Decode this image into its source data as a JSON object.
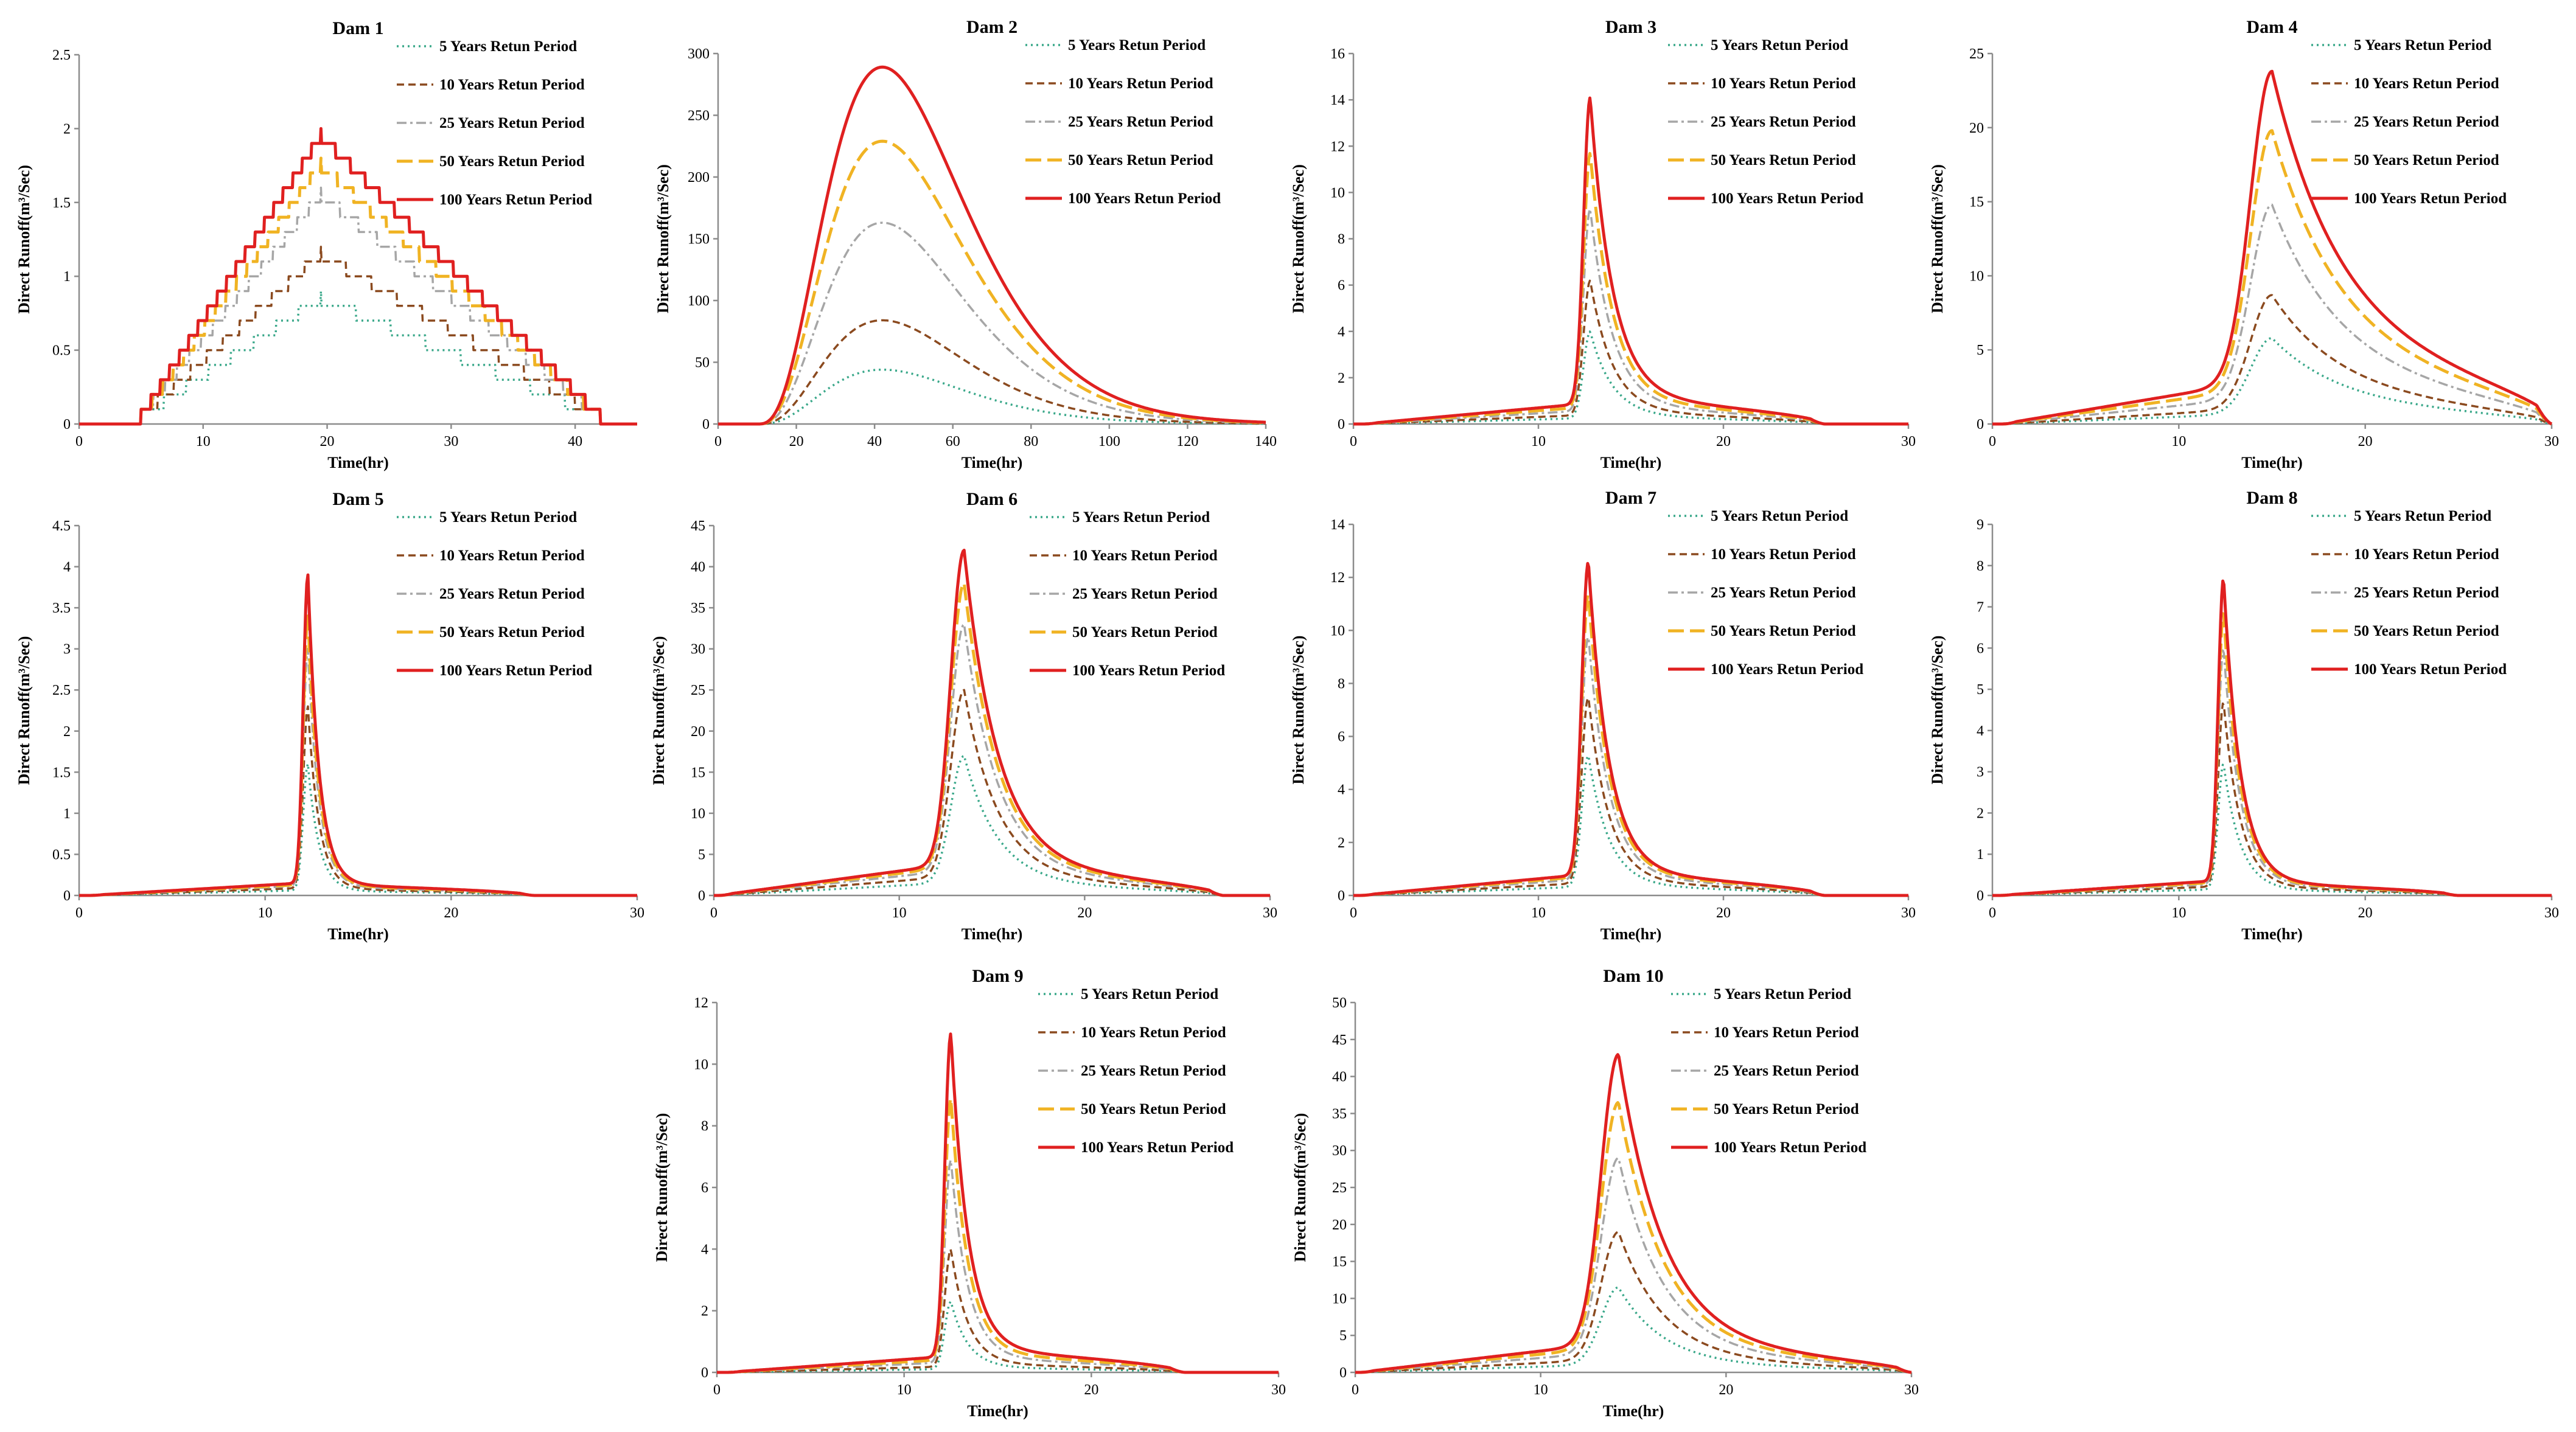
{
  "figure": {
    "description_free": true
  },
  "legend_labels": [
    "5 Years Retun Period",
    "10 Years Retun Period",
    "25 Years Retun Period",
    "50 Years Retun Period",
    "100 Years Retun Period"
  ],
  "series_styles": [
    {
      "color": "#3aa88a",
      "dash": "3,6",
      "width": 3.5
    },
    {
      "color": "#8b4a1f",
      "dash": "12,7",
      "width": 3.5
    },
    {
      "color": "#a6a6a6",
      "dash": "16,6,4,6",
      "width": 3.5
    },
    {
      "color": "#f0b323",
      "dash": "26,10",
      "width": 5
    },
    {
      "color": "#e02020",
      "dash": "",
      "width": 5
    }
  ],
  "axis_color": "#8c8c8c",
  "chart_data": [
    {
      "type": "line",
      "title": "Dam 1",
      "xlabel": "Time(hr)",
      "ylabel": "Direct Runoff(m³/Sec)",
      "xlim": [
        0,
        45
      ],
      "ylim": [
        0,
        2.5
      ],
      "xticks": [
        0,
        10,
        20,
        30,
        40
      ],
      "yticks": [
        0,
        0.5,
        1,
        1.5,
        2,
        2.5
      ],
      "ytick_labels": [
        "0",
        "0.5",
        "1",
        "1.5",
        "2",
        "2.5"
      ],
      "shape": {
        "kind": "step",
        "start": 5,
        "peak_t": 19.5,
        "end": 42,
        "base": 0.1
      },
      "peaks": [
        0.9,
        1.2,
        1.6,
        1.8,
        2.0
      ]
    },
    {
      "type": "line",
      "title": "Dam 2",
      "xlabel": "Time(hr)",
      "ylabel": "Direct Runoff(m³/Sec)",
      "xlim": [
        0,
        140
      ],
      "ylim": [
        0,
        300
      ],
      "xticks": [
        0,
        20,
        40,
        60,
        80,
        100,
        120,
        140
      ],
      "yticks": [
        0,
        50,
        100,
        150,
        200,
        250,
        300
      ],
      "ytick_labels": [
        "0",
        "50",
        "100",
        "150",
        "200",
        "250",
        "300"
      ],
      "shape": {
        "kind": "smooth",
        "start": 10,
        "peak_t": 42,
        "end": 140,
        "k": 3.2
      },
      "peaks": [
        44,
        84,
        163,
        229,
        289
      ]
    },
    {
      "type": "line",
      "title": "Dam 3",
      "xlabel": "Time(hr)",
      "ylabel": "Direct Runoff(m³/Sec)",
      "xlim": [
        0,
        30
      ],
      "ylim": [
        0,
        16
      ],
      "xticks": [
        0,
        10,
        20,
        30
      ],
      "yticks": [
        0,
        2,
        4,
        6,
        8,
        10,
        12,
        14,
        16
      ],
      "ytick_labels": [
        "0",
        "2",
        "4",
        "6",
        "8",
        "10",
        "12",
        "14",
        "16"
      ],
      "shape": {
        "kind": "spike",
        "start": 0.5,
        "peak_t": 12.8,
        "end": 25.5,
        "base": 0.04,
        "tail": 0.06,
        "rise": 0.5,
        "fall": 1.2
      },
      "peaks": [
        4.0,
        6.2,
        9.3,
        11.7,
        14.1
      ]
    },
    {
      "type": "line",
      "title": "Dam 4",
      "xlabel": "Time(hr)",
      "ylabel": "Direct Runoff(m³/Sec)",
      "xlim": [
        0,
        30
      ],
      "ylim": [
        0,
        25
      ],
      "xticks": [
        0,
        10,
        20,
        30
      ],
      "yticks": [
        0,
        5,
        10,
        15,
        20,
        25
      ],
      "ytick_labels": [
        "0",
        "5",
        "10",
        "15",
        "20",
        "25"
      ],
      "shape": {
        "kind": "spike",
        "start": 0.5,
        "peak_t": 15,
        "end": 30,
        "base": 0.08,
        "tail": 0.15,
        "rise": 1.6,
        "fall": 3.5
      },
      "peaks": [
        5.8,
        8.7,
        14.8,
        19.8,
        23.8
      ]
    },
    {
      "type": "line",
      "title": "Dam 5",
      "xlabel": "Time(hr)",
      "ylabel": "Direct Runoff(m³/Sec)",
      "xlim": [
        0,
        30
      ],
      "ylim": [
        0,
        4.5
      ],
      "xticks": [
        0,
        10,
        20,
        30
      ],
      "yticks": [
        0,
        0.5,
        1,
        1.5,
        2,
        2.5,
        3,
        3.5,
        4,
        4.5
      ],
      "ytick_labels": [
        "0",
        "0.5",
        "1",
        "1.5",
        "2",
        "2.5",
        "3",
        "3.5",
        "4",
        "4.5"
      ],
      "shape": {
        "kind": "spike",
        "start": 0.5,
        "peak_t": 12.3,
        "end": 24.5,
        "base": 0.025,
        "tail": 0.025,
        "rise": 0.35,
        "fall": 0.6
      },
      "peaks": [
        1.6,
        2.3,
        3.0,
        3.4,
        3.9
      ]
    },
    {
      "type": "line",
      "title": "Dam 6",
      "xlabel": "Time(hr)",
      "ylabel": "Direct Runoff(m³/Sec)",
      "xlim": [
        0,
        30
      ],
      "ylim": [
        0,
        45
      ],
      "xticks": [
        0,
        10,
        20,
        30
      ],
      "yticks": [
        0,
        5,
        10,
        15,
        20,
        25,
        30,
        35,
        40,
        45
      ],
      "ytick_labels": [
        "0",
        "5",
        "10",
        "15",
        "20",
        "25",
        "30",
        "35",
        "40",
        "45"
      ],
      "shape": {
        "kind": "spike",
        "start": 0.2,
        "peak_t": 13.5,
        "end": 27.5,
        "base": 0.06,
        "tail": 0.06,
        "rise": 1.0,
        "fall": 1.8
      },
      "peaks": [
        17,
        25,
        33,
        38,
        42
      ]
    },
    {
      "type": "line",
      "title": "Dam 7",
      "xlabel": "Time(hr)",
      "ylabel": "Direct Runoff(m³/Sec)",
      "xlim": [
        0,
        30
      ],
      "ylim": [
        0,
        14
      ],
      "xticks": [
        0,
        10,
        20,
        30
      ],
      "yticks": [
        0,
        2,
        4,
        6,
        8,
        10,
        12,
        14
      ],
      "ytick_labels": [
        "0",
        "2",
        "4",
        "6",
        "8",
        "10",
        "12",
        "14"
      ],
      "shape": {
        "kind": "spike",
        "start": 0.3,
        "peak_t": 12.7,
        "end": 25.5,
        "base": 0.04,
        "tail": 0.05,
        "rise": 0.5,
        "fall": 1.1
      },
      "peaks": [
        5.3,
        7.5,
        9.8,
        11.4,
        12.6
      ]
    },
    {
      "type": "line",
      "title": "Dam 8",
      "xlabel": "Time(hr)",
      "ylabel": "Direct Runoff(m³/Sec)",
      "xlim": [
        0,
        30
      ],
      "ylim": [
        0,
        9
      ],
      "xticks": [
        0,
        10,
        20,
        30
      ],
      "yticks": [
        0,
        1,
        2,
        3,
        4,
        5,
        6,
        7,
        8,
        9
      ],
      "ytick_labels": [
        "0",
        "1",
        "2",
        "3",
        "4",
        "5",
        "6",
        "7",
        "8",
        "9"
      ],
      "shape": {
        "kind": "spike",
        "start": 0.3,
        "peak_t": 12.4,
        "end": 25,
        "base": 0.03,
        "tail": 0.03,
        "rise": 0.4,
        "fall": 0.9
      },
      "peaks": [
        3.2,
        4.7,
        6.0,
        6.9,
        7.7
      ]
    },
    {
      "type": "line",
      "title": "Dam 9",
      "xlabel": "Time(hr)",
      "ylabel": "Direct Runoff(m³/Sec)",
      "xlim": [
        0,
        30
      ],
      "ylim": [
        0,
        12
      ],
      "xticks": [
        0,
        10,
        20,
        30
      ],
      "yticks": [
        0,
        2,
        4,
        6,
        8,
        10,
        12
      ],
      "ytick_labels": [
        "0",
        "2",
        "4",
        "6",
        "8",
        "10",
        "12"
      ],
      "shape": {
        "kind": "spike",
        "start": 0.5,
        "peak_t": 12.5,
        "end": 25,
        "base": 0.03,
        "tail": 0.05,
        "rise": 0.45,
        "fall": 0.9
      },
      "peaks": [
        2.3,
        4.0,
        6.9,
        8.9,
        11.0
      ]
    },
    {
      "type": "line",
      "title": "Dam 10",
      "xlabel": "Time(hr)",
      "ylabel": "Direct Runoff(m³/Sec)",
      "xlim": [
        0,
        30
      ],
      "ylim": [
        0,
        50
      ],
      "xticks": [
        0,
        10,
        20,
        30
      ],
      "yticks": [
        0,
        5,
        10,
        15,
        20,
        25,
        30,
        35,
        40,
        45,
        50
      ],
      "ytick_labels": [
        "0",
        "5",
        "10",
        "15",
        "20",
        "25",
        "30",
        "35",
        "40",
        "45",
        "50"
      ],
      "shape": {
        "kind": "spike",
        "start": 0.2,
        "peak_t": 14.2,
        "end": 30,
        "base": 0.06,
        "tail": 0.06,
        "rise": 1.3,
        "fall": 2.4
      },
      "peaks": [
        11.5,
        19,
        29,
        36.5,
        43
      ]
    }
  ]
}
